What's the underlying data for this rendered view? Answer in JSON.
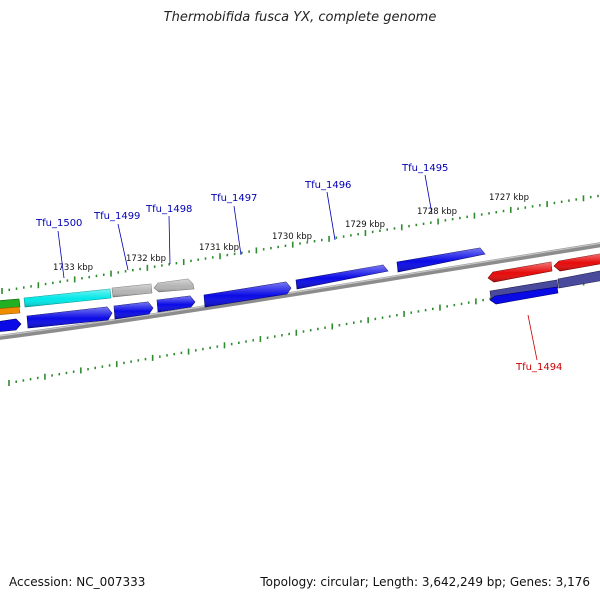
{
  "title": "Thermobifida fusca YX, complete genome",
  "footer": {
    "accession": "Accession: NC_007333",
    "summary": "Topology: circular; Length: 3,642,249 bp; Genes: 3,176"
  },
  "colors": {
    "background": "#ffffff",
    "backbone": "#8c8c8c",
    "tick": "#2e8b2e",
    "gene_blue": "#0a0ae6",
    "gene_red": "#e60a0a",
    "gene_cyan": "#00e8e8",
    "gene_gray": "#b4b4b4",
    "gene_slate": "#4a4a9c",
    "gene_green": "#22b022",
    "gene_orange": "#f08c00",
    "label_blue": "#0000b4",
    "label_red": "#c80000"
  },
  "kbp_labels": [
    {
      "id": "1733",
      "text": "1733 kbp"
    },
    {
      "id": "1732",
      "text": "1732 kbp"
    },
    {
      "id": "1731",
      "text": "1731 kbp"
    },
    {
      "id": "1730",
      "text": "1730 kbp"
    },
    {
      "id": "1729",
      "text": "1729 kbp"
    },
    {
      "id": "1728",
      "text": "1728 kbp"
    },
    {
      "id": "1727",
      "text": "1727 kbp"
    }
  ],
  "gene_labels": [
    {
      "id": "tfu1500",
      "text": "Tfu_1500",
      "color": "label_blue"
    },
    {
      "id": "tfu1499",
      "text": "Tfu_1499",
      "color": "label_blue"
    },
    {
      "id": "tfu1498",
      "text": "Tfu_1498",
      "color": "label_blue"
    },
    {
      "id": "tfu1497",
      "text": "Tfu_1497",
      "color": "label_blue"
    },
    {
      "id": "tfu1496",
      "text": "Tfu_1496",
      "color": "label_blue"
    },
    {
      "id": "tfu1495",
      "text": "Tfu_1495",
      "color": "label_blue"
    },
    {
      "id": "tfu1494",
      "text": "Tfu_1494",
      "color": "label_red"
    }
  ]
}
